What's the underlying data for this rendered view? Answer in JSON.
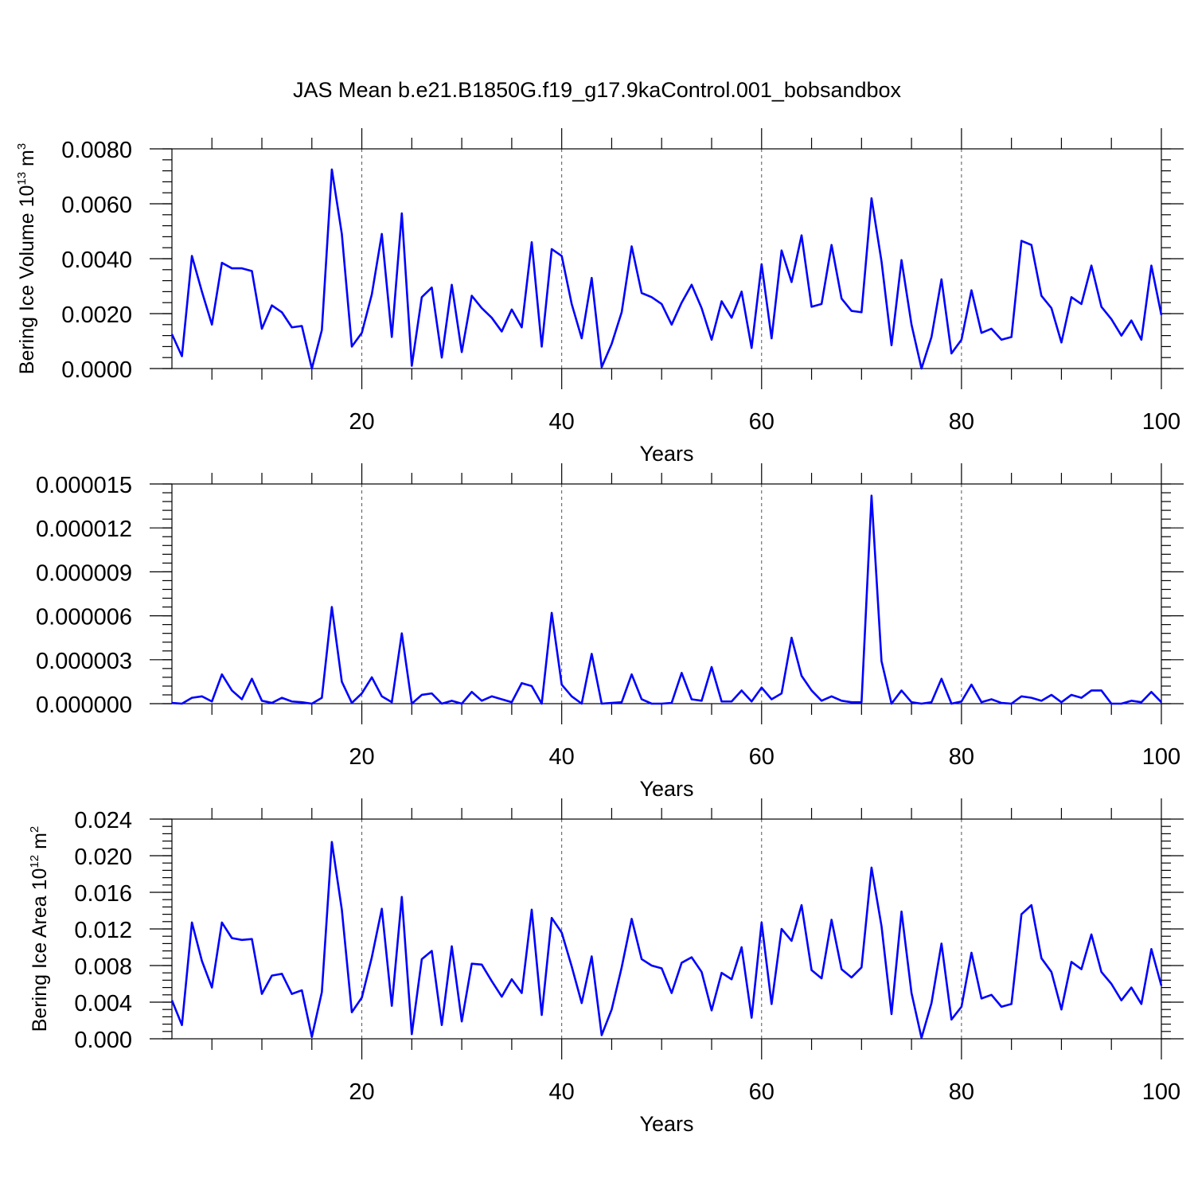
{
  "title": "JAS Mean b.e21.B1850G.f19_g17.9kaControl.001_bobsandbox",
  "colors": {
    "series": "#0000ff",
    "axes": "#000000",
    "grid": "#555555"
  },
  "chart_data": [
    {
      "type": "line",
      "xlabel": "Years",
      "ylabel": "Bering Ice Volume 10",
      "ylabel_sup": "13",
      "ylabel_unit": " m",
      "ylabel_unit_sup": "3",
      "xlim": [
        1,
        100
      ],
      "ylim": [
        0,
        0.008
      ],
      "xticks": [
        20,
        40,
        60,
        80,
        100
      ],
      "yticks": [
        0,
        0.002,
        0.004,
        0.006,
        0.008
      ],
      "ytick_labels": [
        "0.0000",
        "0.0020",
        "0.0040",
        "0.0060",
        "0.0080"
      ],
      "y_minor_step": 0.0004,
      "grid": "x-dashed",
      "x": [
        1,
        2,
        3,
        4,
        5,
        6,
        7,
        8,
        9,
        10,
        11,
        12,
        13,
        14,
        15,
        16,
        17,
        18,
        19,
        20,
        21,
        22,
        23,
        24,
        25,
        26,
        27,
        28,
        29,
        30,
        31,
        32,
        33,
        34,
        35,
        36,
        37,
        38,
        39,
        40,
        41,
        42,
        43,
        44,
        45,
        46,
        47,
        48,
        49,
        50,
        51,
        52,
        53,
        54,
        55,
        56,
        57,
        58,
        59,
        60,
        61,
        62,
        63,
        64,
        65,
        66,
        67,
        68,
        69,
        70,
        71,
        72,
        73,
        74,
        75,
        76,
        77,
        78,
        79,
        80,
        81,
        82,
        83,
        84,
        85,
        86,
        87,
        88,
        89,
        90,
        91,
        92,
        93,
        94,
        95,
        96,
        97,
        98,
        99,
        100
      ],
      "values": [
        0.00125,
        0.00045,
        0.0041,
        0.0028,
        0.0016,
        0.00385,
        0.00365,
        0.00365,
        0.00355,
        0.00145,
        0.0023,
        0.00205,
        0.0015,
        0.00155,
        0.0,
        0.0014,
        0.00725,
        0.0049,
        0.0008,
        0.0013,
        0.0027,
        0.0049,
        0.00115,
        0.00565,
        0.0001,
        0.0026,
        0.00295,
        0.0004,
        0.00305,
        0.0006,
        0.00265,
        0.0022,
        0.00185,
        0.00135,
        0.00215,
        0.0015,
        0.0046,
        0.0008,
        0.00435,
        0.0041,
        0.00235,
        0.0011,
        0.0033,
        5e-05,
        0.0009,
        0.00205,
        0.00445,
        0.00275,
        0.0026,
        0.00235,
        0.0016,
        0.0024,
        0.00305,
        0.0022,
        0.00105,
        0.00245,
        0.00185,
        0.0028,
        0.00075,
        0.0038,
        0.0011,
        0.0043,
        0.00315,
        0.00485,
        0.00225,
        0.00235,
        0.0045,
        0.00255,
        0.0021,
        0.00205,
        0.0062,
        0.0039,
        0.00085,
        0.00395,
        0.0016,
        0.0,
        0.00115,
        0.00325,
        0.00055,
        0.00105,
        0.00285,
        0.0013,
        0.00145,
        0.00105,
        0.00115,
        0.00465,
        0.0045,
        0.00265,
        0.0022,
        0.00095,
        0.0026,
        0.00235,
        0.00375,
        0.00225,
        0.0018,
        0.0012,
        0.00175,
        0.00105,
        0.00375,
        0.00195
      ]
    },
    {
      "type": "line",
      "xlabel": "Years",
      "ylabel": "",
      "xlim": [
        1,
        100
      ],
      "ylim": [
        0,
        1.5e-05
      ],
      "xticks": [
        20,
        40,
        60,
        80,
        100
      ],
      "yticks": [
        0,
        3e-06,
        6e-06,
        9e-06,
        1.2e-05,
        1.5e-05
      ],
      "ytick_labels": [
        "0.000000",
        "0.000003",
        "0.000006",
        "0.000009",
        "0.000012",
        "0.000015"
      ],
      "y_minor_step": 6e-07,
      "grid": "x-dashed",
      "x": [
        1,
        2,
        3,
        4,
        5,
        6,
        7,
        8,
        9,
        10,
        11,
        12,
        13,
        14,
        15,
        16,
        17,
        18,
        19,
        20,
        21,
        22,
        23,
        24,
        25,
        26,
        27,
        28,
        29,
        30,
        31,
        32,
        33,
        34,
        35,
        36,
        37,
        38,
        39,
        40,
        41,
        42,
        43,
        44,
        45,
        46,
        47,
        48,
        49,
        50,
        51,
        52,
        53,
        54,
        55,
        56,
        57,
        58,
        59,
        60,
        61,
        62,
        63,
        64,
        65,
        66,
        67,
        68,
        69,
        70,
        71,
        72,
        73,
        74,
        75,
        76,
        77,
        78,
        79,
        80,
        81,
        82,
        83,
        84,
        85,
        86,
        87,
        88,
        89,
        90,
        91,
        92,
        93,
        94,
        95,
        96,
        97,
        98,
        99,
        100
      ],
      "values": [
        5e-08,
        0.0,
        4e-07,
        5e-07,
        1.5e-07,
        2e-06,
        9e-07,
        3e-07,
        1.7e-06,
        2e-07,
        5e-08,
        4e-07,
        1.5e-07,
        1e-07,
        0.0,
        4e-07,
        6.6e-06,
        1.5e-06,
        5e-08,
        7e-07,
        1.8e-06,
        5e-07,
        1e-07,
        4.8e-06,
        0.0,
        6e-07,
        7e-07,
        0.0,
        2e-07,
        0.0,
        8e-07,
        2e-07,
        5e-07,
        3e-07,
        1e-07,
        1.4e-06,
        1.2e-06,
        0.0,
        6.2e-06,
        1.3e-06,
        5e-07,
        0.0,
        3.4e-06,
        0.0,
        5e-08,
        1e-07,
        2e-06,
        3e-07,
        0.0,
        0.0,
        5e-08,
        2.1e-06,
        3e-07,
        2e-07,
        2.5e-06,
        1.5e-07,
        1.5e-07,
        9e-07,
        1.5e-07,
        1.1e-06,
        3e-07,
        7e-07,
        4.5e-06,
        1.9e-06,
        9e-07,
        2e-07,
        5e-07,
        2e-07,
        1e-07,
        1e-07,
        1.42e-05,
        2.9e-06,
        0.0,
        9e-07,
        1e-07,
        0.0,
        1e-07,
        1.7e-06,
        0.0,
        1.5e-07,
        1.3e-06,
        1e-07,
        3e-07,
        5e-08,
        0.0,
        5e-07,
        4e-07,
        2e-07,
        6e-07,
        1e-07,
        6e-07,
        4e-07,
        9e-07,
        9e-07,
        0.0,
        0.0,
        2e-07,
        1e-07,
        8e-07,
        1e-07
      ]
    },
    {
      "type": "line",
      "xlabel": "Years",
      "ylabel": "Bering Ice Area 10",
      "ylabel_sup": "12",
      "ylabel_unit": " m",
      "ylabel_unit_sup": "2",
      "xlim": [
        1,
        100
      ],
      "ylim": [
        0,
        0.024
      ],
      "xticks": [
        20,
        40,
        60,
        80,
        100
      ],
      "yticks": [
        0,
        0.004,
        0.008,
        0.012,
        0.016,
        0.02,
        0.024
      ],
      "ytick_labels": [
        "0.000",
        "0.004",
        "0.008",
        "0.012",
        "0.016",
        "0.020",
        "0.024"
      ],
      "y_minor_step": 0.0008,
      "grid": "x-dashed",
      "x": [
        1,
        2,
        3,
        4,
        5,
        6,
        7,
        8,
        9,
        10,
        11,
        12,
        13,
        14,
        15,
        16,
        17,
        18,
        19,
        20,
        21,
        22,
        23,
        24,
        25,
        26,
        27,
        28,
        29,
        30,
        31,
        32,
        33,
        34,
        35,
        36,
        37,
        38,
        39,
        40,
        41,
        42,
        43,
        44,
        45,
        46,
        47,
        48,
        49,
        50,
        51,
        52,
        53,
        54,
        55,
        56,
        57,
        58,
        59,
        60,
        61,
        62,
        63,
        64,
        65,
        66,
        67,
        68,
        69,
        70,
        71,
        72,
        73,
        74,
        75,
        76,
        77,
        78,
        79,
        80,
        81,
        82,
        83,
        84,
        85,
        86,
        87,
        88,
        89,
        90,
        91,
        92,
        93,
        94,
        95,
        96,
        97,
        98,
        99,
        100
      ],
      "values": [
        0.0042,
        0.0015,
        0.0127,
        0.0085,
        0.0056,
        0.0127,
        0.011,
        0.0108,
        0.0109,
        0.0049,
        0.0069,
        0.0071,
        0.0049,
        0.0053,
        0.0002,
        0.0051,
        0.0215,
        0.0141,
        0.0029,
        0.0045,
        0.0089,
        0.0142,
        0.0036,
        0.0155,
        0.0005,
        0.0087,
        0.0096,
        0.0015,
        0.0101,
        0.0019,
        0.0082,
        0.0081,
        0.0063,
        0.0046,
        0.0065,
        0.005,
        0.0141,
        0.0026,
        0.0132,
        0.0116,
        0.0079,
        0.0039,
        0.009,
        0.0004,
        0.0032,
        0.0078,
        0.0131,
        0.0087,
        0.008,
        0.0077,
        0.005,
        0.0083,
        0.0089,
        0.0073,
        0.0031,
        0.0072,
        0.0065,
        0.01,
        0.0023,
        0.0127,
        0.0038,
        0.012,
        0.0107,
        0.0146,
        0.0075,
        0.0066,
        0.013,
        0.0076,
        0.0067,
        0.0078,
        0.0187,
        0.0123,
        0.0027,
        0.0139,
        0.005,
        0.0001,
        0.0039,
        0.0104,
        0.0021,
        0.0035,
        0.0094,
        0.0044,
        0.0048,
        0.0035,
        0.0038,
        0.0136,
        0.0146,
        0.0088,
        0.0073,
        0.0032,
        0.0084,
        0.0076,
        0.0114,
        0.0073,
        0.006,
        0.0042,
        0.0056,
        0.0038,
        0.0098,
        0.0058
      ]
    }
  ]
}
